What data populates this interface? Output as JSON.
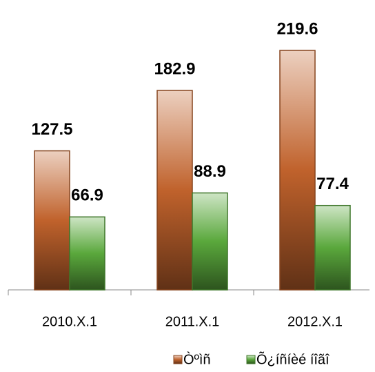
{
  "chart_data": {
    "type": "bar",
    "categories": [
      "2010.X.1",
      "2011.X.1",
      "2012.X.1"
    ],
    "series": [
      {
        "name": "Òºìñ",
        "color": "#c0622c",
        "values": [
          127.5,
          182.9,
          219.6
        ]
      },
      {
        "name": "Õ¿íñíèé íîãî",
        "color": "#5aa83c",
        "values": [
          66.9,
          88.9,
          77.4
        ]
      }
    ],
    "ylim": [
      0,
      250
    ],
    "legend": "bottom"
  }
}
